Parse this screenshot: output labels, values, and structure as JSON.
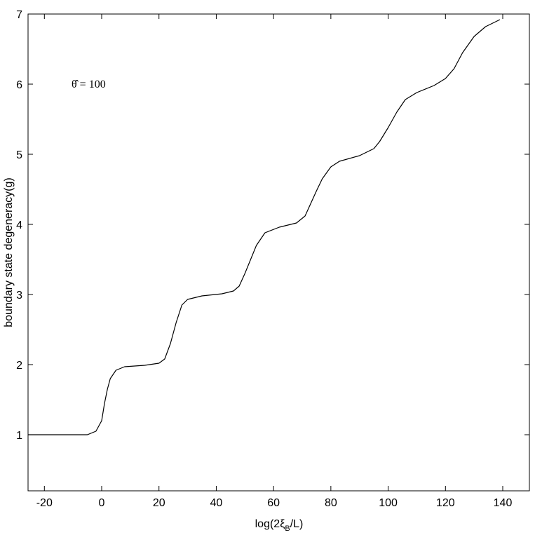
{
  "chart_data": {
    "type": "line",
    "xlabel": [
      "log(2ξ",
      "B",
      "/L)"
    ],
    "ylabel": "boundary state degeneracy(g)",
    "annotation": "θ̂ = 100",
    "xlim": [
      -25.7,
      149.3
    ],
    "ylim": [
      0.2,
      7
    ],
    "xticks": [
      -20,
      0,
      20,
      40,
      60,
      80,
      100,
      120,
      140
    ],
    "yticks": [
      1,
      2,
      3,
      4,
      5,
      6,
      7
    ],
    "color": "#000000",
    "x": [
      -25.7,
      -5,
      -2,
      0,
      1,
      2,
      3,
      5,
      8,
      15,
      20,
      22,
      24,
      25,
      26,
      28,
      30,
      35,
      42,
      46,
      48,
      50,
      52,
      54,
      57,
      62,
      68,
      71,
      73,
      75,
      77,
      80,
      83,
      90,
      95,
      97,
      100,
      103,
      106,
      110,
      116,
      120,
      123,
      126,
      130,
      134,
      137,
      139
    ],
    "values": [
      1.0,
      1.0,
      1.05,
      1.2,
      1.45,
      1.65,
      1.8,
      1.92,
      1.97,
      1.99,
      2.02,
      2.08,
      2.3,
      2.45,
      2.6,
      2.85,
      2.93,
      2.98,
      3.01,
      3.05,
      3.12,
      3.3,
      3.5,
      3.7,
      3.88,
      3.96,
      4.02,
      4.12,
      4.3,
      4.48,
      4.65,
      4.82,
      4.9,
      4.98,
      5.08,
      5.18,
      5.38,
      5.6,
      5.78,
      5.88,
      5.98,
      6.08,
      6.22,
      6.45,
      6.68,
      6.82,
      6.88,
      6.92
    ]
  }
}
